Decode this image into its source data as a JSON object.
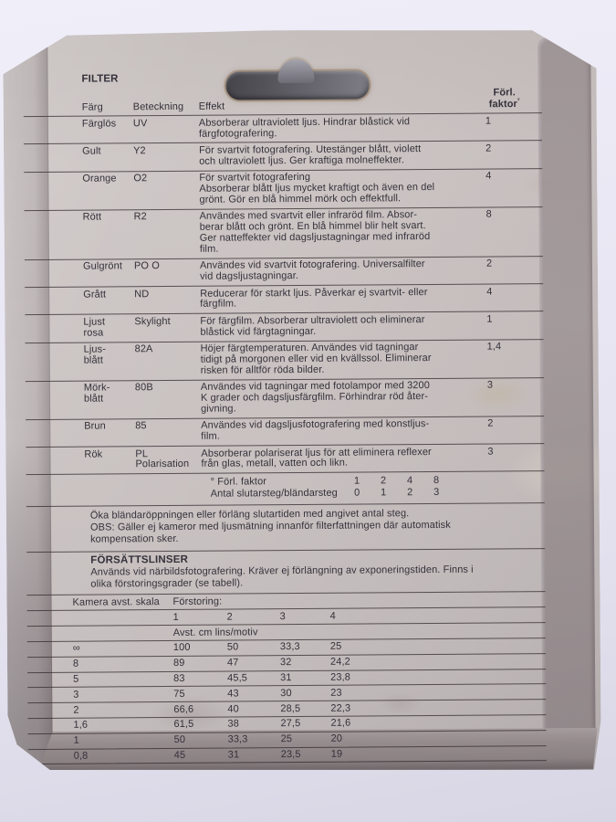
{
  "colors": {
    "card": "#c9c2c1",
    "plastic_band": "#938a8c",
    "background": "#e8e6f2",
    "ink": "#35313a"
  },
  "header": {
    "title": "FILTER",
    "col_color": "Färg",
    "col_designation": "Beteckning",
    "col_effect": "Effekt",
    "col_factor_line1": "Förl.",
    "col_factor_line2": "faktor",
    "factor_mark": "°"
  },
  "filters": {
    "rows": [
      {
        "color": "Färglös",
        "designation": "UV",
        "effect": "Absorberar ultraviolett ljus. Hindrar blåstick vid\nfärgfotografering.",
        "factor": "1"
      },
      {
        "color": "Gult",
        "designation": "Y2",
        "effect": "För svartvit fotografering. Utestänger blått, violett\noch ultraviolett ljus. Ger kraftiga molneffekter.",
        "factor": "2"
      },
      {
        "color": "Orange",
        "designation": "O2",
        "effect": "För svartvit fotografering\nAbsorberar blått ljus mycket kraftigt och även en del\ngrönt. Gör en blå himmel mörk och effektfull.",
        "factor": "4"
      },
      {
        "color": "Rött",
        "designation": "R2",
        "effect": "Användes med svartvit eller infraröd film. Absor-\nberar blått och grönt. En blå himmel blir helt svart.\nGer natteffekter vid dagsljustagningar med infraröd\nfilm.",
        "factor": "8"
      },
      {
        "color": "Gulgrönt",
        "designation": "PO O",
        "effect": "Användes vid svartvit fotografering. Universalfilter\nvid dagsljustagningar.",
        "factor": "2"
      },
      {
        "color": "Grått",
        "designation": "ND",
        "effect": "Reducerar för starkt ljus. Påverkar ej svartvit- eller\nfärgfilm.",
        "factor": "4"
      },
      {
        "color": "Ljust\nrosa",
        "designation": "Skylight",
        "effect": "För färgfilm. Absorberar ultraviolett och eliminerar\nblåstick vid färgtagningar.",
        "factor": "1"
      },
      {
        "color": "Ljus-\nblått",
        "designation": "82A",
        "effect": "Höjer färgtemperaturen. Användes vid tagningar\ntidigt på morgonen eller vid en kvällssol. Eliminerar\nrisken för alltför röda bilder.",
        "factor": "1,4"
      },
      {
        "color": "Mörk-\nblått",
        "designation": "80B",
        "effect": "Användes vid tagningar med fotolampor med 3200\nK grader och dagsljusfärgfilm. Förhindrar röd åter-\ngivning.",
        "factor": "3"
      },
      {
        "color": "Brun",
        "designation": "85",
        "effect": "Användes vid dagsljusfotografering med konstljus-\nfilm.",
        "factor": "2"
      },
      {
        "color": "Rök",
        "designation": "PL\nPolarisation",
        "effect": "Absorberar polariserat ljus för att eliminera reflexer\nfrån glas, metall, vatten och likn.",
        "factor": "3"
      }
    ]
  },
  "factor_note": {
    "row1_label": "° Förl. faktor",
    "row1_values": [
      "1",
      "2",
      "4",
      "8"
    ],
    "row2_label": "Antal slutarsteg/bländarsteg",
    "row2_values": [
      "0",
      "1",
      "2",
      "3"
    ]
  },
  "notes": {
    "text": "Öka bländaröppningen eller förläng slutartiden med angivet antal steg.\nOBS: Gäller ej kameror med ljusmätning innanför filterfattningen där automatisk\nkompensation sker."
  },
  "closeup": {
    "title": "FÖRSÄTTSLINSER",
    "intro": "Används vid närbildsfotografering. Kräver ej förlängning av exponeringstiden. Finns i\nolika förstoringsgrader (se tabell).",
    "col_scale": "Kamera avst. skala",
    "col_magnification": "Förstoring:",
    "magnifications": [
      "1",
      "2",
      "3",
      "4"
    ],
    "distance_label": "Avst. cm lins/motiv",
    "rows": [
      {
        "scale": "∞",
        "values": [
          "100",
          "50",
          "33,3",
          "25"
        ]
      },
      {
        "scale": "8",
        "values": [
          "89",
          "47",
          "32",
          "24,2"
        ]
      },
      {
        "scale": "5",
        "values": [
          "83",
          "45,5",
          "31",
          "23,8"
        ]
      },
      {
        "scale": "3",
        "values": [
          "75",
          "43",
          "30",
          "23"
        ]
      },
      {
        "scale": "2",
        "values": [
          "66,6",
          "40",
          "28,5",
          "22,3"
        ]
      },
      {
        "scale": "1,6",
        "values": [
          "61,5",
          "38",
          "27,5",
          "21,6"
        ]
      },
      {
        "scale": "1",
        "values": [
          "50",
          "33,3",
          "25",
          "20"
        ]
      },
      {
        "scale": "0,8",
        "values": [
          "45",
          "31",
          "23,5",
          "19"
        ]
      }
    ]
  }
}
